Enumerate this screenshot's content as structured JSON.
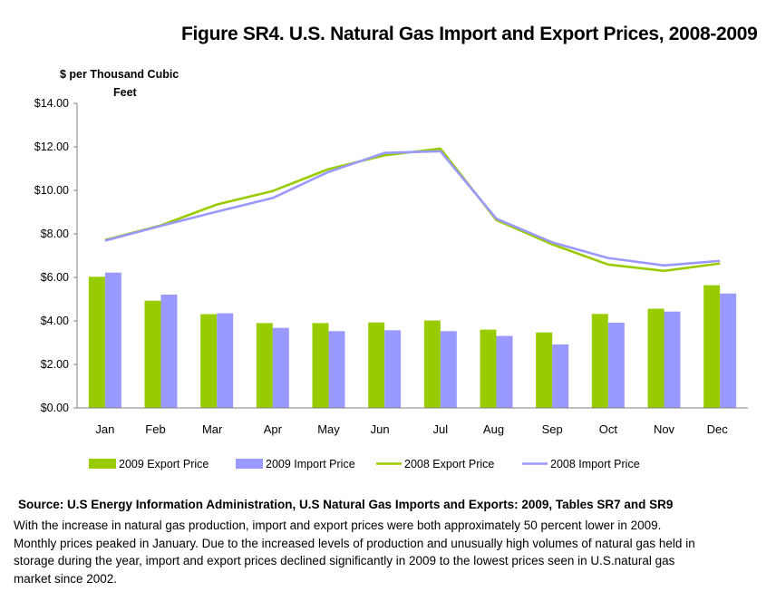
{
  "title": "Figure SR4. U.S. Natural Gas Import and Export Prices, 2008-2009",
  "y_unit_line1": "$ per Thousand Cubic",
  "y_unit_line2": "Feet",
  "source": "Source: U.S Energy Information Administration, U.S Natural Gas  Imports and Exports: 2009, Tables SR7 and SR9",
  "caption": "With the increase in natural gas production, import and export prices were both approximately 50   percent lower in 2009. Monthly prices peaked in January. Due to the increased levels of production and unusually high volumes of natural gas held in storage during the year, import and export prices declined significantly in 2009 to the lowest prices seen in U.S.natural gas market since 2002.",
  "colors": {
    "export": "#99cc00",
    "import": "#9999ff",
    "axis": "#808080"
  },
  "chart_data": {
    "type": "bar",
    "title": "Figure SR4. U.S. Natural Gas Import and Export Prices, 2008-2009",
    "ylabel": "$ per Thousand Cubic Feet",
    "ylim": [
      0,
      14
    ],
    "yticks": [
      "$0.00",
      "$2.00",
      "$4.00",
      "$6.00",
      "$8.00",
      "$10.00",
      "$12.00",
      "$14.00"
    ],
    "categories": [
      "Jan",
      "Feb",
      "Mar",
      "Apr",
      "May",
      "Jun",
      "Jul",
      "Aug",
      "Sep",
      "Oct",
      "Nov",
      "Dec"
    ],
    "series": [
      {
        "name": "2009 Export Price",
        "kind": "bar",
        "color": "#99cc00",
        "values": [
          6.03,
          4.93,
          4.31,
          3.9,
          3.9,
          3.93,
          4.02,
          3.6,
          3.47,
          4.32,
          4.56,
          5.64
        ]
      },
      {
        "name": "2009 Import Price",
        "kind": "bar",
        "color": "#9999ff",
        "values": [
          6.22,
          5.21,
          4.35,
          3.68,
          3.53,
          3.57,
          3.53,
          3.31,
          2.92,
          3.92,
          4.43,
          5.26
        ]
      },
      {
        "name": "2008 Export Price",
        "kind": "line",
        "color": "#99cc00",
        "values": [
          7.72,
          8.39,
          9.35,
          9.97,
          10.98,
          11.61,
          11.92,
          8.64,
          7.52,
          6.59,
          6.3,
          6.64
        ]
      },
      {
        "name": "2008 Import Price",
        "kind": "line",
        "color": "#9999ff",
        "values": [
          7.69,
          8.37,
          9.02,
          9.65,
          10.85,
          11.72,
          11.8,
          8.7,
          7.61,
          6.89,
          6.55,
          6.76
        ]
      }
    ]
  }
}
